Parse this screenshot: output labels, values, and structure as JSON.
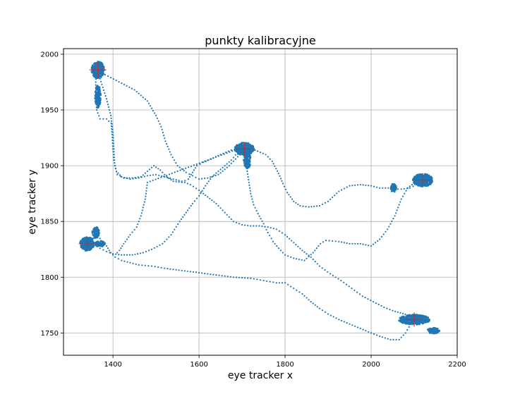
{
  "chart_data": {
    "type": "scatter",
    "title": "punkty kalibracyjne",
    "xlabel": "eye tracker x",
    "ylabel": "eye tracker y",
    "xlim": [
      1285,
      2200
    ],
    "ylim": [
      1730,
      2005
    ],
    "xticks": [
      1400,
      1600,
      1800,
      2000,
      2200
    ],
    "yticks": [
      1750,
      1800,
      1850,
      1900,
      1950,
      2000
    ],
    "grid": true,
    "colors": {
      "gaze": "#1f77b4",
      "target": "#d62728",
      "grid": "#b0b0b0"
    },
    "calibration_points": [
      {
        "x": 1365,
        "y": 1986
      },
      {
        "x": 1705,
        "y": 1915
      },
      {
        "x": 2120,
        "y": 1887
      },
      {
        "x": 1340,
        "y": 1830
      },
      {
        "x": 2100,
        "y": 1762
      }
    ],
    "gaze_path": [
      [
        1365,
        1986
      ],
      [
        1375,
        1983
      ],
      [
        1395,
        1979
      ],
      [
        1420,
        1974
      ],
      [
        1450,
        1968
      ],
      [
        1480,
        1958
      ],
      [
        1500,
        1945
      ],
      [
        1512,
        1935
      ],
      [
        1522,
        1922
      ],
      [
        1535,
        1910
      ],
      [
        1550,
        1900
      ],
      [
        1570,
        1894
      ],
      [
        1585,
        1891
      ],
      [
        1600,
        1888
      ],
      [
        1620,
        1889
      ],
      [
        1645,
        1892
      ],
      [
        1670,
        1900
      ],
      [
        1690,
        1908
      ],
      [
        1705,
        1915
      ],
      [
        1710,
        1905
      ],
      [
        1712,
        1895
      ],
      [
        1716,
        1885
      ],
      [
        1720,
        1875
      ],
      [
        1727,
        1865
      ],
      [
        1737,
        1857
      ],
      [
        1750,
        1848
      ],
      [
        1760,
        1840
      ],
      [
        1772,
        1832
      ],
      [
        1785,
        1826
      ],
      [
        1800,
        1820
      ],
      [
        1820,
        1817
      ],
      [
        1845,
        1815
      ],
      [
        1865,
        1822
      ],
      [
        1882,
        1830
      ],
      [
        1895,
        1833
      ],
      [
        1925,
        1832
      ],
      [
        1950,
        1830
      ],
      [
        1975,
        1830
      ],
      [
        2000,
        1828
      ],
      [
        2020,
        1834
      ],
      [
        2038,
        1843
      ],
      [
        2055,
        1855
      ],
      [
        2070,
        1870
      ],
      [
        2085,
        1880
      ],
      [
        2105,
        1886
      ],
      [
        2120,
        1887
      ],
      [
        2105,
        1883
      ],
      [
        2090,
        1880
      ],
      [
        2070,
        1879
      ],
      [
        2055,
        1879
      ],
      [
        2040,
        1880
      ],
      [
        2020,
        1880
      ],
      [
        2000,
        1882
      ],
      [
        1975,
        1883
      ],
      [
        1950,
        1882
      ],
      [
        1925,
        1877
      ],
      [
        1900,
        1868
      ],
      [
        1880,
        1864
      ],
      [
        1855,
        1863
      ],
      [
        1835,
        1864
      ],
      [
        1820,
        1868
      ],
      [
        1805,
        1876
      ],
      [
        1795,
        1884
      ],
      [
        1785,
        1893
      ],
      [
        1770,
        1904
      ],
      [
        1755,
        1910
      ],
      [
        1730,
        1914
      ],
      [
        1705,
        1915
      ],
      [
        1690,
        1912
      ],
      [
        1675,
        1905
      ],
      [
        1660,
        1900
      ],
      [
        1645,
        1895
      ],
      [
        1630,
        1890
      ],
      [
        1615,
        1882
      ],
      [
        1600,
        1873
      ],
      [
        1585,
        1866
      ],
      [
        1570,
        1858
      ],
      [
        1555,
        1850
      ],
      [
        1535,
        1838
      ],
      [
        1515,
        1830
      ],
      [
        1490,
        1825
      ],
      [
        1470,
        1822
      ],
      [
        1445,
        1820
      ],
      [
        1420,
        1820
      ],
      [
        1400,
        1821
      ],
      [
        1385,
        1823
      ],
      [
        1370,
        1826
      ],
      [
        1355,
        1829
      ],
      [
        1340,
        1830
      ],
      [
        1355,
        1835
      ],
      [
        1362,
        1845
      ],
      [
        1365,
        1840
      ],
      [
        1372,
        1832
      ],
      [
        1385,
        1828
      ],
      [
        1395,
        1822
      ],
      [
        1405,
        1818
      ],
      [
        1420,
        1815
      ],
      [
        1440,
        1813
      ],
      [
        1460,
        1811
      ],
      [
        1490,
        1810
      ],
      [
        1520,
        1808
      ],
      [
        1560,
        1806
      ],
      [
        1600,
        1804
      ],
      [
        1640,
        1802
      ],
      [
        1680,
        1800
      ],
      [
        1720,
        1799
      ],
      [
        1750,
        1797
      ],
      [
        1780,
        1795
      ],
      [
        1800,
        1795
      ],
      [
        1820,
        1790
      ],
      [
        1840,
        1785
      ],
      [
        1860,
        1778
      ],
      [
        1880,
        1772
      ],
      [
        1900,
        1767
      ],
      [
        1925,
        1762
      ],
      [
        1950,
        1758
      ],
      [
        1975,
        1754
      ],
      [
        2000,
        1750
      ],
      [
        2020,
        1747
      ],
      [
        2045,
        1744
      ],
      [
        2065,
        1744
      ],
      [
        2080,
        1750
      ],
      [
        2092,
        1758
      ],
      [
        2100,
        1762
      ],
      [
        2085,
        1766
      ],
      [
        2068,
        1768
      ],
      [
        2050,
        1770
      ],
      [
        2030,
        1773
      ],
      [
        2005,
        1778
      ],
      [
        1980,
        1783
      ],
      [
        1955,
        1790
      ],
      [
        1930,
        1797
      ],
      [
        1905,
        1803
      ],
      [
        1880,
        1810
      ],
      [
        1860,
        1818
      ],
      [
        1840,
        1824
      ],
      [
        1820,
        1831
      ],
      [
        1800,
        1838
      ],
      [
        1780,
        1843
      ],
      [
        1760,
        1845
      ],
      [
        1740,
        1846
      ],
      [
        1720,
        1846
      ],
      [
        1700,
        1847
      ],
      [
        1680,
        1850
      ],
      [
        1660,
        1858
      ],
      [
        1640,
        1866
      ],
      [
        1620,
        1872
      ],
      [
        1600,
        1878
      ],
      [
        1580,
        1883
      ],
      [
        1560,
        1886
      ],
      [
        1540,
        1888
      ],
      [
        1520,
        1890
      ],
      [
        1500,
        1892
      ],
      [
        1480,
        1891
      ],
      [
        1460,
        1889
      ],
      [
        1440,
        1888
      ],
      [
        1420,
        1890
      ],
      [
        1408,
        1895
      ],
      [
        1402,
        1905
      ],
      [
        1400,
        1915
      ],
      [
        1398,
        1928
      ],
      [
        1396,
        1938
      ],
      [
        1385,
        1942
      ],
      [
        1370,
        1942
      ],
      [
        1362,
        1950
      ],
      [
        1360,
        1962
      ],
      [
        1360,
        1975
      ],
      [
        1362,
        1986
      ],
      [
        1365,
        1986
      ],
      [
        1370,
        1978
      ],
      [
        1385,
        1960
      ],
      [
        1395,
        1945
      ],
      [
        1400,
        1930
      ],
      [
        1402,
        1915
      ],
      [
        1404,
        1900
      ],
      [
        1410,
        1892
      ],
      [
        1425,
        1889
      ],
      [
        1445,
        1889
      ],
      [
        1465,
        1890
      ],
      [
        1480,
        1895
      ],
      [
        1495,
        1900
      ],
      [
        1510,
        1896
      ],
      [
        1525,
        1890
      ],
      [
        1540,
        1886
      ],
      [
        1560,
        1885
      ],
      [
        1575,
        1888
      ],
      [
        1585,
        1894
      ],
      [
        1595,
        1900
      ],
      [
        1610,
        1903
      ],
      [
        1628,
        1906
      ],
      [
        1650,
        1910
      ],
      [
        1675,
        1914
      ],
      [
        1690,
        1915
      ],
      [
        1480,
        1885
      ],
      [
        1475,
        1870
      ],
      [
        1465,
        1855
      ],
      [
        1455,
        1845
      ],
      [
        1440,
        1838
      ],
      [
        1425,
        1830
      ],
      [
        1415,
        1824
      ],
      [
        1405,
        1820
      ]
    ],
    "clusters": [
      {
        "x": 1365,
        "y": 1986,
        "rx": 9,
        "ry": 12
      },
      {
        "x": 1365,
        "y": 1962,
        "rx": 4,
        "ry": 16
      },
      {
        "x": 1705,
        "y": 1915,
        "rx": 14,
        "ry": 9
      },
      {
        "x": 1712,
        "y": 1905,
        "rx": 5,
        "ry": 12
      },
      {
        "x": 2120,
        "y": 1887,
        "rx": 14,
        "ry": 9
      },
      {
        "x": 2052,
        "y": 1880,
        "rx": 4,
        "ry": 6
      },
      {
        "x": 1340,
        "y": 1830,
        "rx": 10,
        "ry": 10
      },
      {
        "x": 1360,
        "y": 1840,
        "rx": 5,
        "ry": 8
      },
      {
        "x": 1370,
        "y": 1830,
        "rx": 7,
        "ry": 4
      },
      {
        "x": 2100,
        "y": 1762,
        "rx": 22,
        "ry": 7
      },
      {
        "x": 2145,
        "y": 1752,
        "rx": 9,
        "ry": 4
      }
    ]
  }
}
